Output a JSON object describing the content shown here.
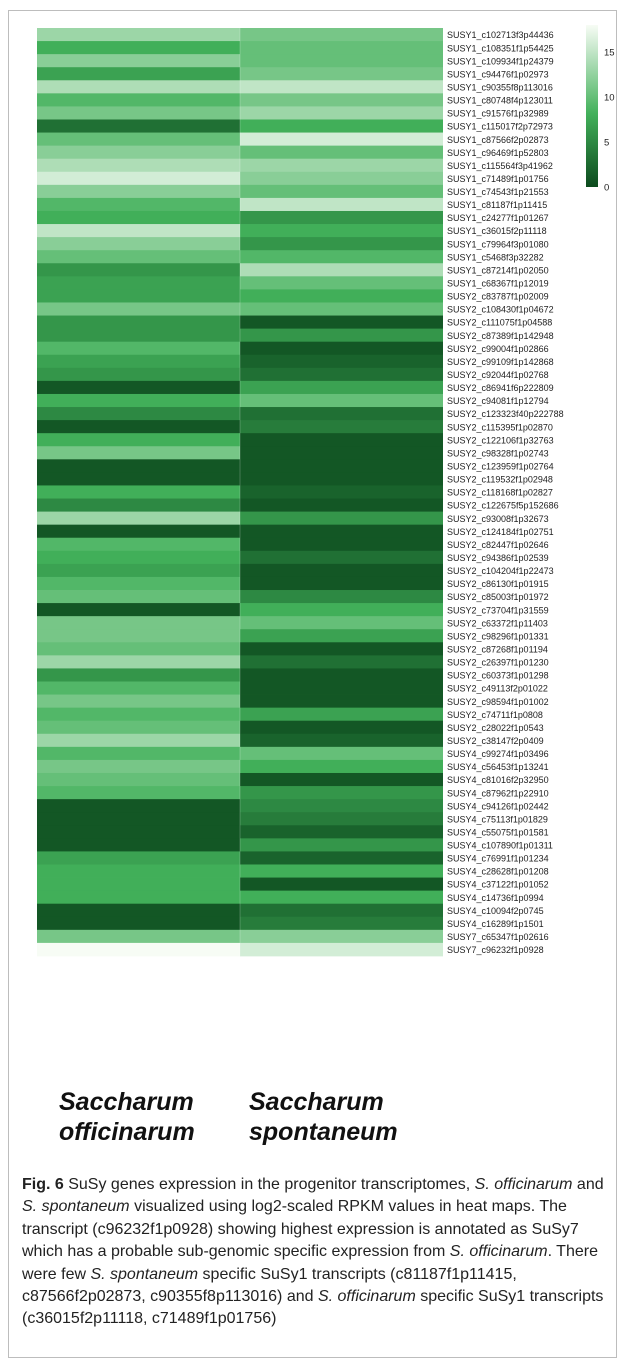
{
  "chart_data": {
    "type": "heatmap",
    "columns": [
      "Saccharum officinarum",
      "Saccharum spontaneum"
    ],
    "column_labels": [
      [
        "Saccharum",
        "officinarum"
      ],
      [
        "Saccharum",
        "spontaneum"
      ]
    ],
    "rows": [
      "SUSY1_c102713f3p44436",
      "SUSY1_c108351f1p54425",
      "SUSY1_c109934f1p24379",
      "SUSY1_c94476f1p02973",
      "SUSY1_c90355f8p113016",
      "SUSY1_c80748f4p123011",
      "SUSY1_c91576f1p32989",
      "SUSY1_c115017f2p72973",
      "SUSY1_c87566f2p02873",
      "SUSY1_c96469f1p52803",
      "SUSY1_c115564f3p41962",
      "SUSY1_c71489f1p01756",
      "SUSY1_c74543f1p21553",
      "SUSY1_c81187f1p11415",
      "SUSY1_c24277f1p01267",
      "SUSY1_c36015f2p11118",
      "SUSY1_c79964f3p01080",
      "SUSY1_c5468f3p32282",
      "SUSY1_c87214f1p02050",
      "SUSY1_c68367f1p12019",
      "SUSY2_c83787f1p02009",
      "SUSY2_c108430f1p04672",
      "SUSY2_c111075f1p04588",
      "SUSY2_c87389f1p142948",
      "SUSY2_c99004f1p02866",
      "SUSY2_c99109f1p142868",
      "SUSY2_c92044f1p02768",
      "SUSY2_c86941f6p222809",
      "SUSY2_c94081f1p12794",
      "SUSY2_c123323f40p222788",
      "SUSY2_c115395f1p02870",
      "SUSY2_c122106f1p32763",
      "SUSY2_c98328f1p02743",
      "SUSY2_c123959f1p02764",
      "SUSY2_c119532f1p02948",
      "SUSY2_c118168f1p02827",
      "SUSY2_c122675f5p152686",
      "SUSY2_c93008f1p32673",
      "SUSY2_c124184f1p02751",
      "SUSY2_c82447f1p02646",
      "SUSY2_c94386f1p02539",
      "SUSY2_c104204f1p22473",
      "SUSY2_c86130f1p01915",
      "SUSY2_c85003f1p01972",
      "SUSY2_c73704f1p31559",
      "SUSY2_c63372f1p11403",
      "SUSY2_c98296f1p01331",
      "SUSY2_c87268f1p01194",
      "SUSY2_c26397f1p01230",
      "SUSY2_c60373f1p01298",
      "SUSY2_c49113f2p01022",
      "SUSY2_c98594f1p01002",
      "SUSY2_c74711f1p0808",
      "SUSY2_c28022f1p0543",
      "SUSY2_c38147f2p0409",
      "SUSY4_c99274f1p03496",
      "SUSY4_c56453f1p13241",
      "SUSY4_c81016f2p32950",
      "SUSY4_c87962f1p22910",
      "SUSY4_c94126f1p02442",
      "SUSY4_c75113f1p01829",
      "SUSY4_c55075f1p01581",
      "SUSY4_c107890f1p01311",
      "SUSY4_c76991f1p01234",
      "SUSY4_c28628f1p01208",
      "SUSY4_c37122f1p01052",
      "SUSY4_c14736f1p0994",
      "SUSY4_c10094f2p0745",
      "SUSY4_c16289f1p1501",
      "SUSY7_c65347f1p02616",
      "SUSY7_c96232f1p0928"
    ],
    "values": [
      [
        13,
        11
      ],
      [
        8,
        10
      ],
      [
        12,
        10
      ],
      [
        7,
        11
      ],
      [
        14,
        15
      ],
      [
        9,
        11
      ],
      [
        11,
        13
      ],
      [
        3,
        8
      ],
      [
        10,
        16
      ],
      [
        12,
        10
      ],
      [
        14,
        13
      ],
      [
        16,
        12
      ],
      [
        12,
        10
      ],
      [
        9,
        15
      ],
      [
        8,
        6
      ],
      [
        15,
        8
      ],
      [
        12,
        6
      ],
      [
        10,
        9
      ],
      [
        6,
        14
      ],
      [
        7,
        10
      ],
      [
        7,
        8
      ],
      [
        11,
        10
      ],
      [
        6,
        1
      ],
      [
        6,
        6
      ],
      [
        9,
        1
      ],
      [
        7,
        2
      ],
      [
        6,
        3
      ],
      [
        1,
        7
      ],
      [
        8,
        10
      ],
      [
        5,
        3
      ],
      [
        1,
        4
      ],
      [
        8,
        1
      ],
      [
        11,
        1
      ],
      [
        1,
        1
      ],
      [
        1,
        1
      ],
      [
        8,
        2
      ],
      [
        5,
        1
      ],
      [
        13,
        6
      ],
      [
        1,
        1
      ],
      [
        9,
        1
      ],
      [
        8,
        3
      ],
      [
        7,
        1
      ],
      [
        9,
        1
      ],
      [
        10,
        5
      ],
      [
        1,
        8
      ],
      [
        11,
        10
      ],
      [
        11,
        7
      ],
      [
        10,
        1
      ],
      [
        13,
        3
      ],
      [
        6,
        1
      ],
      [
        9,
        1
      ],
      [
        11,
        1
      ],
      [
        9,
        7
      ],
      [
        10,
        1
      ],
      [
        13,
        2
      ],
      [
        9,
        10
      ],
      [
        11,
        8
      ],
      [
        10,
        1
      ],
      [
        9,
        6
      ],
      [
        1,
        5
      ],
      [
        1,
        4
      ],
      [
        1,
        2
      ],
      [
        1,
        6
      ],
      [
        7,
        2
      ],
      [
        8,
        8
      ],
      [
        8,
        1
      ],
      [
        8,
        8
      ],
      [
        1,
        3
      ],
      [
        1,
        4
      ],
      [
        11,
        12
      ],
      [
        18,
        16
      ]
    ],
    "colorbar": {
      "min": 0,
      "max": 18,
      "ticks": [
        0,
        5,
        10,
        15
      ]
    },
    "colors": {
      "low": "#0c4a1d",
      "mid": "#42b05a",
      "high": "#f7fcf5"
    }
  },
  "caption": {
    "figure_number": "Fig. 6",
    "segments": [
      {
        "text": " SuSy genes expression in the progenitor transcriptomes, ",
        "italic": false
      },
      {
        "text": "S. officinarum",
        "italic": true
      },
      {
        "text": " and ",
        "italic": false
      },
      {
        "text": "S. spontaneum",
        "italic": true
      },
      {
        "text": " visualized using log2-scaled RPKM values in heat maps. The transcript (c96232f1p0928) showing highest expression is annotated as SuSy7 which has a probable sub-genomic specific expression from ",
        "italic": false
      },
      {
        "text": "S. officinarum",
        "italic": true
      },
      {
        "text": ". There were few ",
        "italic": false
      },
      {
        "text": "S. spontaneum",
        "italic": true
      },
      {
        "text": " specific SuSy1 transcripts (c81187f1p11415, c87566f2p02873, c90355f8p113016) and ",
        "italic": false
      },
      {
        "text": "S. officinarum",
        "italic": true
      },
      {
        "text": " specific SuSy1 transcripts (c36015f2p11118, c71489f1p01756)",
        "italic": false
      }
    ]
  }
}
